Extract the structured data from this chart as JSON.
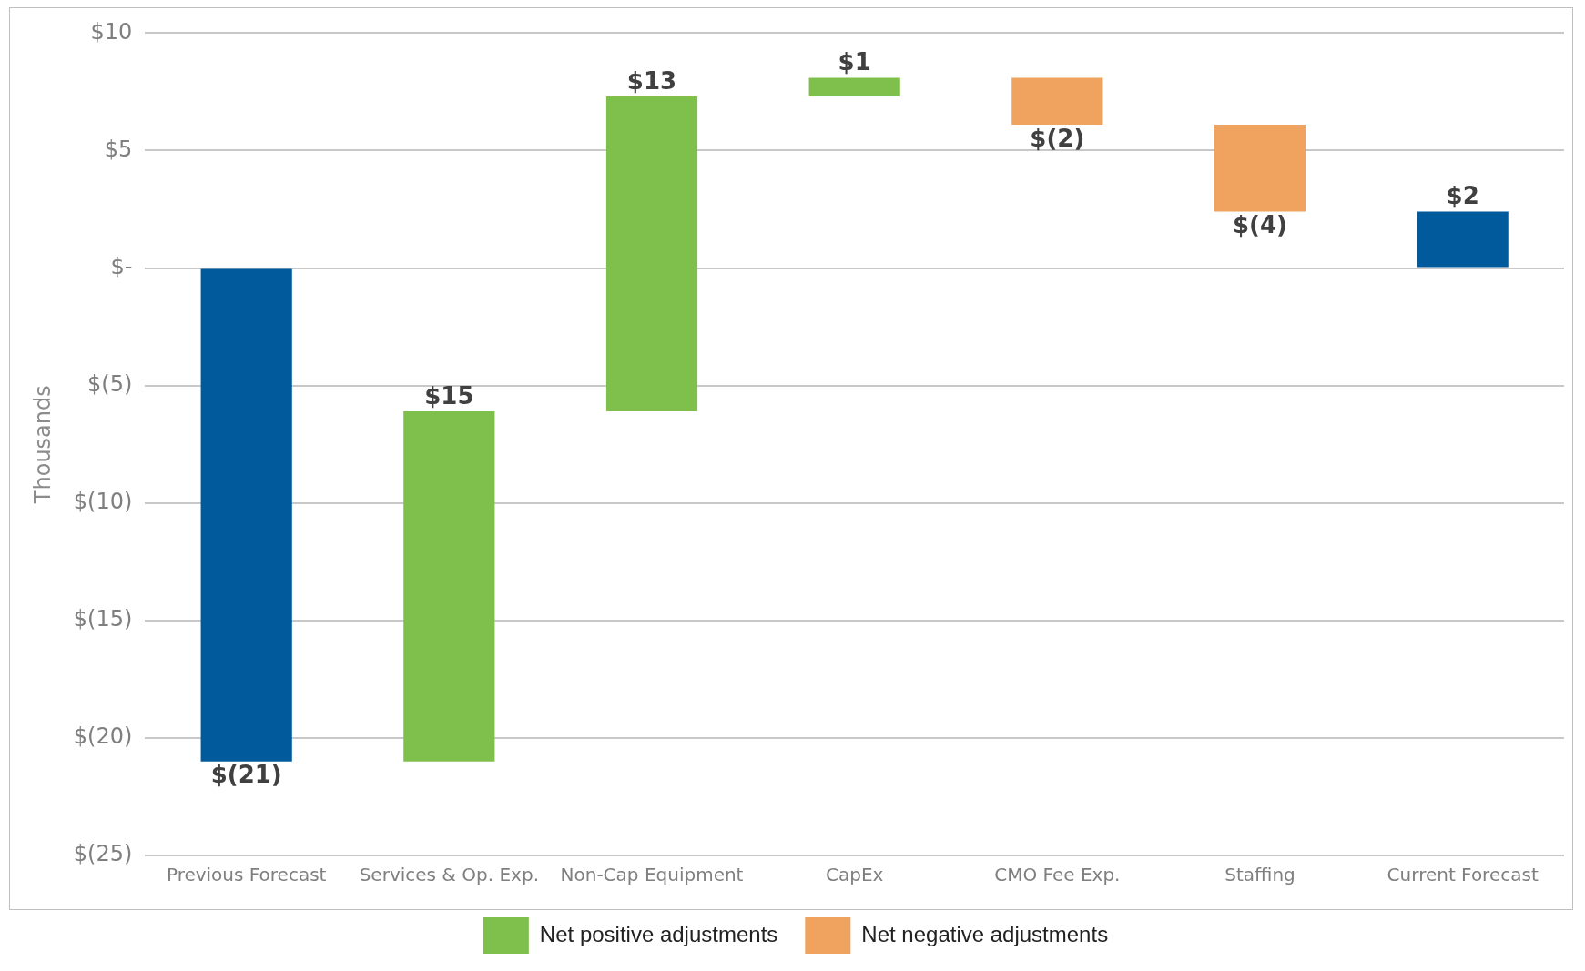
{
  "chart_data": {
    "type": "bar",
    "ylabel": "Thousands",
    "categories": [
      "Previous Forecast",
      "Services & Op. Exp.",
      "Non-Cap Equipment",
      "CapEx",
      "CMO Fee Exp.",
      "Staffing",
      "Current Forecast"
    ],
    "series": [
      {
        "color": "#005a9c",
        "values": [
          -21,
          null,
          null,
          null,
          null,
          null,
          2.4
        ],
        "base": [
          0,
          null,
          null,
          null,
          null,
          null,
          0
        ]
      },
      {
        "name": "Net positive adjustments",
        "color": "#7fbf4c",
        "values": [
          null,
          14.9,
          13.4,
          0.8,
          null,
          null,
          null
        ],
        "base": [
          null,
          -21,
          -6.1,
          7.3,
          null,
          null,
          null
        ]
      },
      {
        "name": "Net negative adjustments",
        "color": "#f0a35e",
        "values": [
          null,
          null,
          null,
          null,
          -2,
          -3.7,
          null
        ],
        "base": [
          null,
          null,
          null,
          null,
          8.1,
          6.1,
          null
        ]
      }
    ],
    "value_labels": [
      "$(21)",
      "$15",
      "$13",
      "$1",
      "$(2)",
      "$(4)",
      "$2"
    ],
    "ylim": [
      -25,
      10
    ],
    "yticks": [
      {
        "value": -25,
        "label": "$(25)"
      },
      {
        "value": -20,
        "label": "$(20)"
      },
      {
        "value": -15,
        "label": "$(15)"
      },
      {
        "value": -10,
        "label": "$(10)"
      },
      {
        "value": -5,
        "label": "$(5)"
      },
      {
        "value": 0,
        "label": "$-"
      },
      {
        "value": 5,
        "label": "$5"
      },
      {
        "value": 10,
        "label": "$10"
      }
    ],
    "grid": "y",
    "legend": "bottom"
  }
}
